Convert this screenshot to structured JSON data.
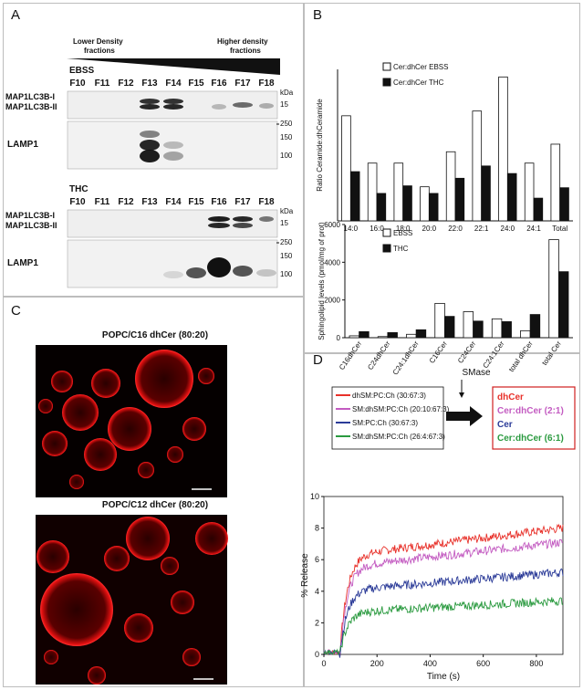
{
  "panel_labels": {
    "a": "A",
    "b": "B",
    "c": "C",
    "d": "D"
  },
  "panel_a": {
    "lower_density": "Lower Density fractions",
    "higher_density": "Higher  density fractions",
    "lower_line1": "Lower Density",
    "lower_line2": "fractions",
    "higher_line1": "Higher  density",
    "higher_line2": "fractions",
    "ebss_title": "EBSS",
    "thc_title": "THC",
    "fractions": [
      "F10",
      "F11",
      "F12",
      "F13",
      "F14",
      "F15",
      "F16",
      "F17",
      "F18"
    ],
    "lc3_label_1": "MAP1LC3B-I",
    "lc3_label_2": "MAP1LC3B-II",
    "lamp1_label": "LAMP1",
    "kda": "kDa",
    "lc3_marker": "15",
    "lamp1_markers": [
      "250",
      "150",
      "100"
    ]
  },
  "panel_c": {
    "top_title": "POPC/C16 dhCer (80:20)",
    "bottom_title": "POPC/C12 dhCer (80:20)"
  },
  "panel_d": {
    "smase": "SMase",
    "left_legend": [
      {
        "label": "dhSM:PC:Ch (30:67:3)",
        "color": "#e8312a"
      },
      {
        "label": "SM:dhSM:PC:Ch (20:10:67:3)",
        "color": "#c35bc1"
      },
      {
        "label": "SM:PC:Ch (30:67:3)",
        "color": "#2b3b98"
      },
      {
        "label": "SM:dhSM:PC:Ch (26:4:67:3)",
        "color": "#2a9a3f"
      }
    ],
    "right_legend": [
      {
        "label": "dhCer",
        "color": "#e8312a"
      },
      {
        "label": "Cer:dhCer (2:1)",
        "color": "#c35bc1"
      },
      {
        "label": "Cer",
        "color": "#2b3b98"
      },
      {
        "label": "Cer:dhCer (6:1)",
        "color": "#2a9a3f"
      }
    ]
  },
  "chart_data": [
    {
      "type": "bar",
      "ylabel": "Ratio Ceramide:dhCeramide",
      "categories": [
        "14:0",
        "16:0",
        "18:0",
        "20:0",
        "22:0",
        "22:1",
        "24:0",
        "24:1",
        "Total"
      ],
      "series": [
        {
          "name": "Cer:dhCer EBSS",
          "values": [
            11.1,
            6.1,
            6.1,
            3.6,
            7.3,
            11.6,
            15.2,
            6.1,
            8.1
          ]
        },
        {
          "name": "Cer:dhCer THC",
          "values": [
            5.2,
            2.9,
            3.7,
            2.9,
            4.5,
            5.8,
            5.0,
            2.4,
            3.5
          ]
        }
      ],
      "ylim": [
        0,
        16
      ],
      "legend_position": "top-left"
    },
    {
      "type": "bar",
      "ylabel": "Sphingolipid levels (pmol/mg of prot)",
      "categories": [
        "C16dhCer",
        "C24dhCer",
        "C24:1dhCer",
        "C16Cer",
        "C24Cer",
        "C24:1Cer",
        "total dhCer",
        "total Cer"
      ],
      "yticks": [
        0,
        2000,
        4000,
        6000
      ],
      "series": [
        {
          "name": "EBSS",
          "values": [
            100,
            60,
            180,
            1820,
            1380,
            1000,
            370,
            5200
          ]
        },
        {
          "name": "THC",
          "values": [
            320,
            270,
            420,
            1130,
            880,
            850,
            1230,
            3500
          ]
        }
      ],
      "ylim": [
        0,
        6000
      ],
      "legend_position": "top-left"
    },
    {
      "type": "line",
      "xlabel": "Time (s)",
      "ylabel": "% Release",
      "xticks": [
        0,
        200,
        400,
        600,
        800
      ],
      "yticks": [
        0,
        2,
        4,
        6,
        8,
        10
      ],
      "xlim": [
        0,
        900
      ],
      "ylim": [
        0,
        10
      ],
      "series": [
        {
          "name": "dhCer",
          "color": "#e8312a",
          "plateau": 8.0
        },
        {
          "name": "Cer:dhCer (2:1)",
          "color": "#c35bc1",
          "plateau": 7.1
        },
        {
          "name": "Cer",
          "color": "#2b3b98",
          "plateau": 5.2
        },
        {
          "name": "Cer:dhCer (6:1)",
          "color": "#2a9a3f",
          "plateau": 3.4
        }
      ]
    }
  ]
}
